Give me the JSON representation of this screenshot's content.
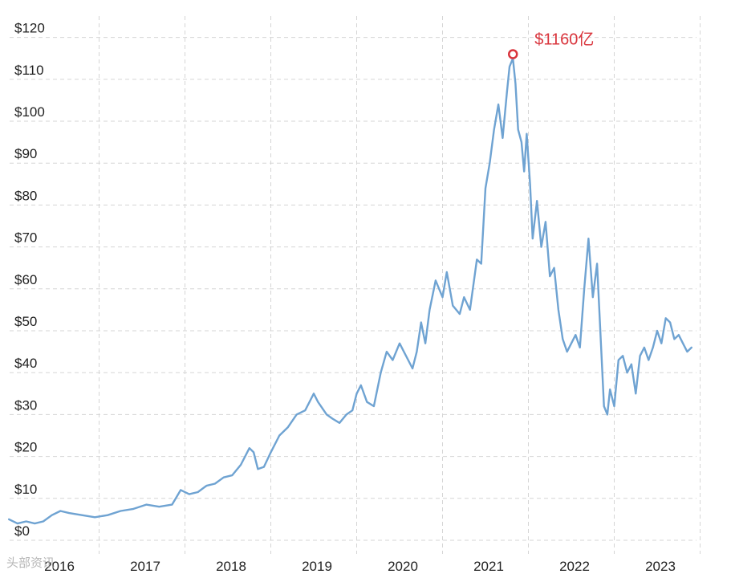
{
  "chart_data": {
    "type": "line",
    "x_unit": "year",
    "ylim": [
      0,
      125
    ],
    "y_ticks": [
      0,
      10,
      20,
      30,
      40,
      50,
      60,
      70,
      80,
      90,
      100,
      110,
      120
    ],
    "y_tick_labels": [
      "$0",
      "$10",
      "$20",
      "$30",
      "$40",
      "$50",
      "$60",
      "$70",
      "$80",
      "$90",
      "$100",
      "$110",
      "$120"
    ],
    "x_ticks": [
      2016,
      2017,
      2018,
      2019,
      2020,
      2021,
      2022,
      2023
    ],
    "x_tick_labels": [
      "2016",
      "2017",
      "2018",
      "2019",
      "2020",
      "2021",
      "2022",
      "2023"
    ],
    "grid": true,
    "colors": {
      "line": "#6fa3d2",
      "annotation": "#d9343c",
      "grid": "#d5d5d5"
    },
    "series": [
      {
        "x": [
          2015.45,
          2015.55,
          2015.65,
          2015.75,
          2015.85,
          2015.95,
          2016.05,
          2016.15,
          2016.3,
          2016.45,
          2016.6,
          2016.75,
          2016.9,
          2017.05,
          2017.2,
          2017.35,
          2017.45,
          2017.55,
          2017.65,
          2017.75,
          2017.85,
          2017.95,
          2018.05,
          2018.15,
          2018.25,
          2018.3,
          2018.35,
          2018.42,
          2018.5,
          2018.6,
          2018.7,
          2018.8,
          2018.9,
          2019.0,
          2019.05,
          2019.15,
          2019.22,
          2019.3,
          2019.38,
          2019.45,
          2019.5,
          2019.55,
          2019.62,
          2019.7,
          2019.78,
          2019.85,
          2019.92,
          2020.0,
          2020.05,
          2020.1,
          2020.15,
          2020.2,
          2020.25,
          2020.3,
          2020.35,
          2020.42,
          2020.5,
          2020.55,
          2020.62,
          2020.7,
          2020.75,
          2020.82,
          2020.9,
          2020.95,
          2021.0,
          2021.05,
          2021.1,
          2021.15,
          2021.2,
          2021.25,
          2021.28,
          2021.32,
          2021.35,
          2021.38,
          2021.42,
          2021.45,
          2021.48,
          2021.52,
          2021.55,
          2021.6,
          2021.65,
          2021.7,
          2021.75,
          2021.8,
          2021.85,
          2021.9,
          2021.95,
          2022.0,
          2022.05,
          2022.1,
          2022.15,
          2022.2,
          2022.25,
          2022.3,
          2022.35,
          2022.38,
          2022.42,
          2022.45,
          2022.5,
          2022.55,
          2022.6,
          2022.65,
          2022.7,
          2022.75,
          2022.8,
          2022.85,
          2022.9,
          2022.95,
          2023.0,
          2023.05,
          2023.1,
          2023.15,
          2023.2,
          2023.25,
          2023.3,
          2023.35,
          2023.4
        ],
        "y": [
          5,
          4,
          4.5,
          4,
          4.5,
          6,
          7,
          6.5,
          6,
          5.5,
          6,
          7,
          7.5,
          8.5,
          8,
          8.5,
          12,
          11,
          11.5,
          13,
          13.5,
          15,
          15.5,
          18,
          22,
          21,
          17,
          17.5,
          21,
          25,
          27,
          30,
          31,
          35,
          33,
          30,
          29,
          28,
          30,
          31,
          35,
          37,
          33,
          32,
          40,
          45,
          43,
          47,
          45,
          43,
          41,
          45,
          52,
          47,
          55,
          62,
          58,
          64,
          56,
          54,
          58,
          55,
          67,
          66,
          84,
          90,
          98,
          104,
          96,
          107,
          113,
          115,
          109,
          98,
          95,
          88,
          97,
          85,
          72,
          81,
          70,
          76,
          63,
          65,
          55,
          48,
          45,
          47,
          49,
          46,
          60,
          72,
          58,
          66,
          45,
          32,
          30,
          36,
          32,
          43,
          44,
          40,
          42,
          35,
          44,
          46,
          43,
          46,
          50,
          47,
          53,
          52,
          48,
          49,
          47,
          45,
          46
        ]
      }
    ],
    "peak": {
      "x": 2021.32,
      "y": 116,
      "label": "$1160亿"
    },
    "watermark": "头部资讯"
  }
}
